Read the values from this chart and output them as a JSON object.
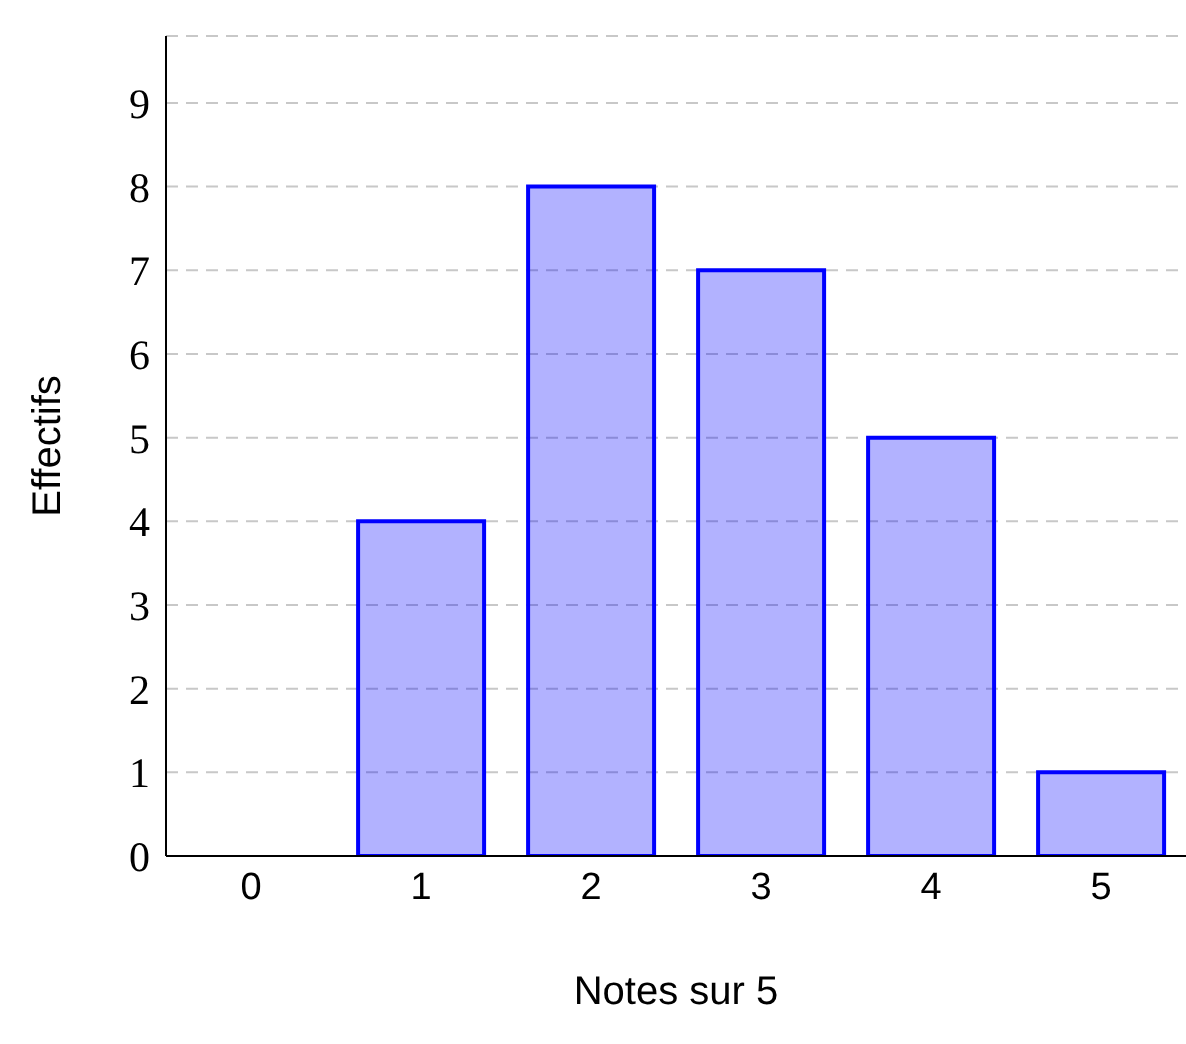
{
  "chart_data": {
    "type": "bar",
    "xlabel": "Notes sur 5",
    "ylabel": "Effectifs",
    "categories": [
      "0",
      "1",
      "2",
      "3",
      "4",
      "5"
    ],
    "series": [
      {
        "color": "#0000ff",
        "values": [
          0,
          4,
          8,
          7,
          5,
          1
        ]
      }
    ],
    "ylim": [
      0,
      9.8
    ],
    "yticks": [
      0,
      1,
      2,
      3,
      4,
      5,
      6,
      7,
      8,
      9
    ],
    "grid": "y"
  }
}
